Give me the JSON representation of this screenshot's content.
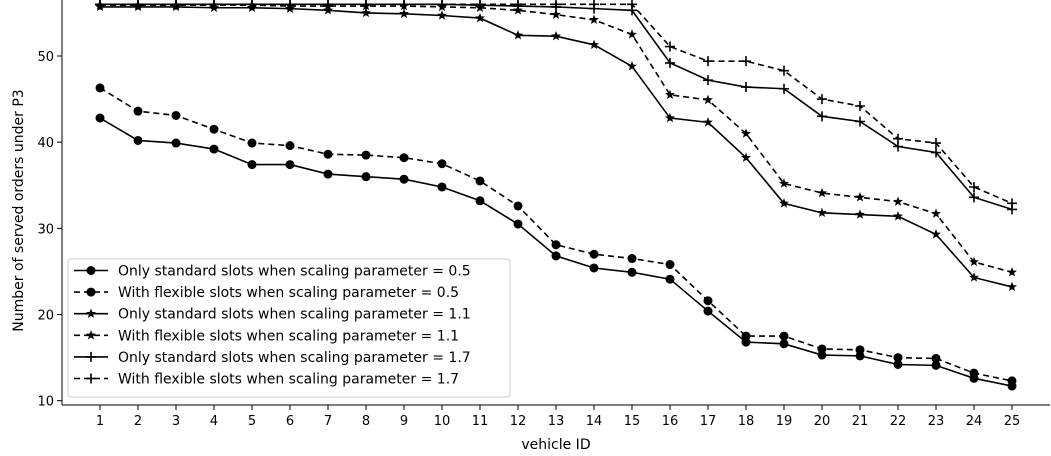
{
  "chart_data": {
    "type": "line",
    "title": "",
    "xlabel": "vehicle ID",
    "ylabel": "Number of served orders under P3",
    "x": [
      1,
      2,
      3,
      4,
      5,
      6,
      7,
      8,
      9,
      10,
      11,
      12,
      13,
      14,
      15,
      16,
      17,
      18,
      19,
      20,
      21,
      22,
      23,
      24,
      25
    ],
    "xlim": [
      0,
      26
    ],
    "ylim": [
      9.5,
      56.5
    ],
    "yticks": [
      10,
      20,
      30,
      40,
      50
    ],
    "grid": false,
    "legend_position": "lower-left",
    "series": [
      {
        "name": "Only standard slots when scaling parameter = 0.5",
        "marker": "circle",
        "linestyle": "solid",
        "color": "#000000",
        "values": [
          42.8,
          40.2,
          39.9,
          39.2,
          37.4,
          37.4,
          36.3,
          36.0,
          35.7,
          34.8,
          33.2,
          30.5,
          26.8,
          25.4,
          24.9,
          24.1,
          20.4,
          16.8,
          16.6,
          15.3,
          15.2,
          14.2,
          14.1,
          12.6,
          11.7
        ]
      },
      {
        "name": "With flexible slots when scaling parameter = 0.5",
        "marker": "circle",
        "linestyle": "dashed",
        "color": "#000000",
        "values": [
          46.3,
          43.6,
          43.1,
          41.5,
          39.9,
          39.6,
          38.6,
          38.5,
          38.2,
          37.5,
          35.5,
          32.6,
          28.1,
          27.0,
          26.5,
          25.8,
          21.6,
          17.5,
          17.5,
          16.0,
          15.9,
          15.0,
          14.9,
          13.2,
          12.3
        ]
      },
      {
        "name": "Only standard slots when scaling parameter = 1.1",
        "marker": "star",
        "linestyle": "solid",
        "color": "#000000",
        "values": [
          55.7,
          55.7,
          55.7,
          55.6,
          55.6,
          55.5,
          55.3,
          55.0,
          54.9,
          54.7,
          54.4,
          52.4,
          52.3,
          51.3,
          48.8,
          42.8,
          42.3,
          38.2,
          32.9,
          31.8,
          31.6,
          31.4,
          29.3,
          24.3,
          23.2
        ]
      },
      {
        "name": "With flexible slots when scaling parameter = 1.1",
        "marker": "star",
        "linestyle": "dashed",
        "color": "#000000",
        "values": [
          55.9,
          55.9,
          55.9,
          55.9,
          55.9,
          55.8,
          55.8,
          55.8,
          55.8,
          55.7,
          55.6,
          55.3,
          54.8,
          54.2,
          52.5,
          45.5,
          44.9,
          41.0,
          35.2,
          34.1,
          33.6,
          33.1,
          31.7,
          26.1,
          24.9
        ]
      },
      {
        "name": "Only standard slots when scaling parameter = 1.7",
        "marker": "plus",
        "linestyle": "solid",
        "color": "#000000",
        "values": [
          56.0,
          56.0,
          56.0,
          56.0,
          56.0,
          56.0,
          56.0,
          56.0,
          56.0,
          56.0,
          55.9,
          55.8,
          55.7,
          55.5,
          55.3,
          49.2,
          47.2,
          46.4,
          46.2,
          43.0,
          42.4,
          39.5,
          38.8,
          33.6,
          32.2
        ]
      },
      {
        "name": "With flexible slots when scaling parameter = 1.7",
        "marker": "plus",
        "linestyle": "dashed",
        "color": "#000000",
        "values": [
          56.0,
          56.0,
          56.0,
          56.0,
          56.0,
          56.0,
          56.0,
          56.0,
          56.0,
          56.0,
          56.0,
          56.0,
          56.0,
          56.0,
          56.0,
          51.1,
          49.4,
          49.4,
          48.3,
          45.0,
          44.2,
          40.4,
          39.9,
          34.8,
          32.9
        ]
      }
    ]
  }
}
